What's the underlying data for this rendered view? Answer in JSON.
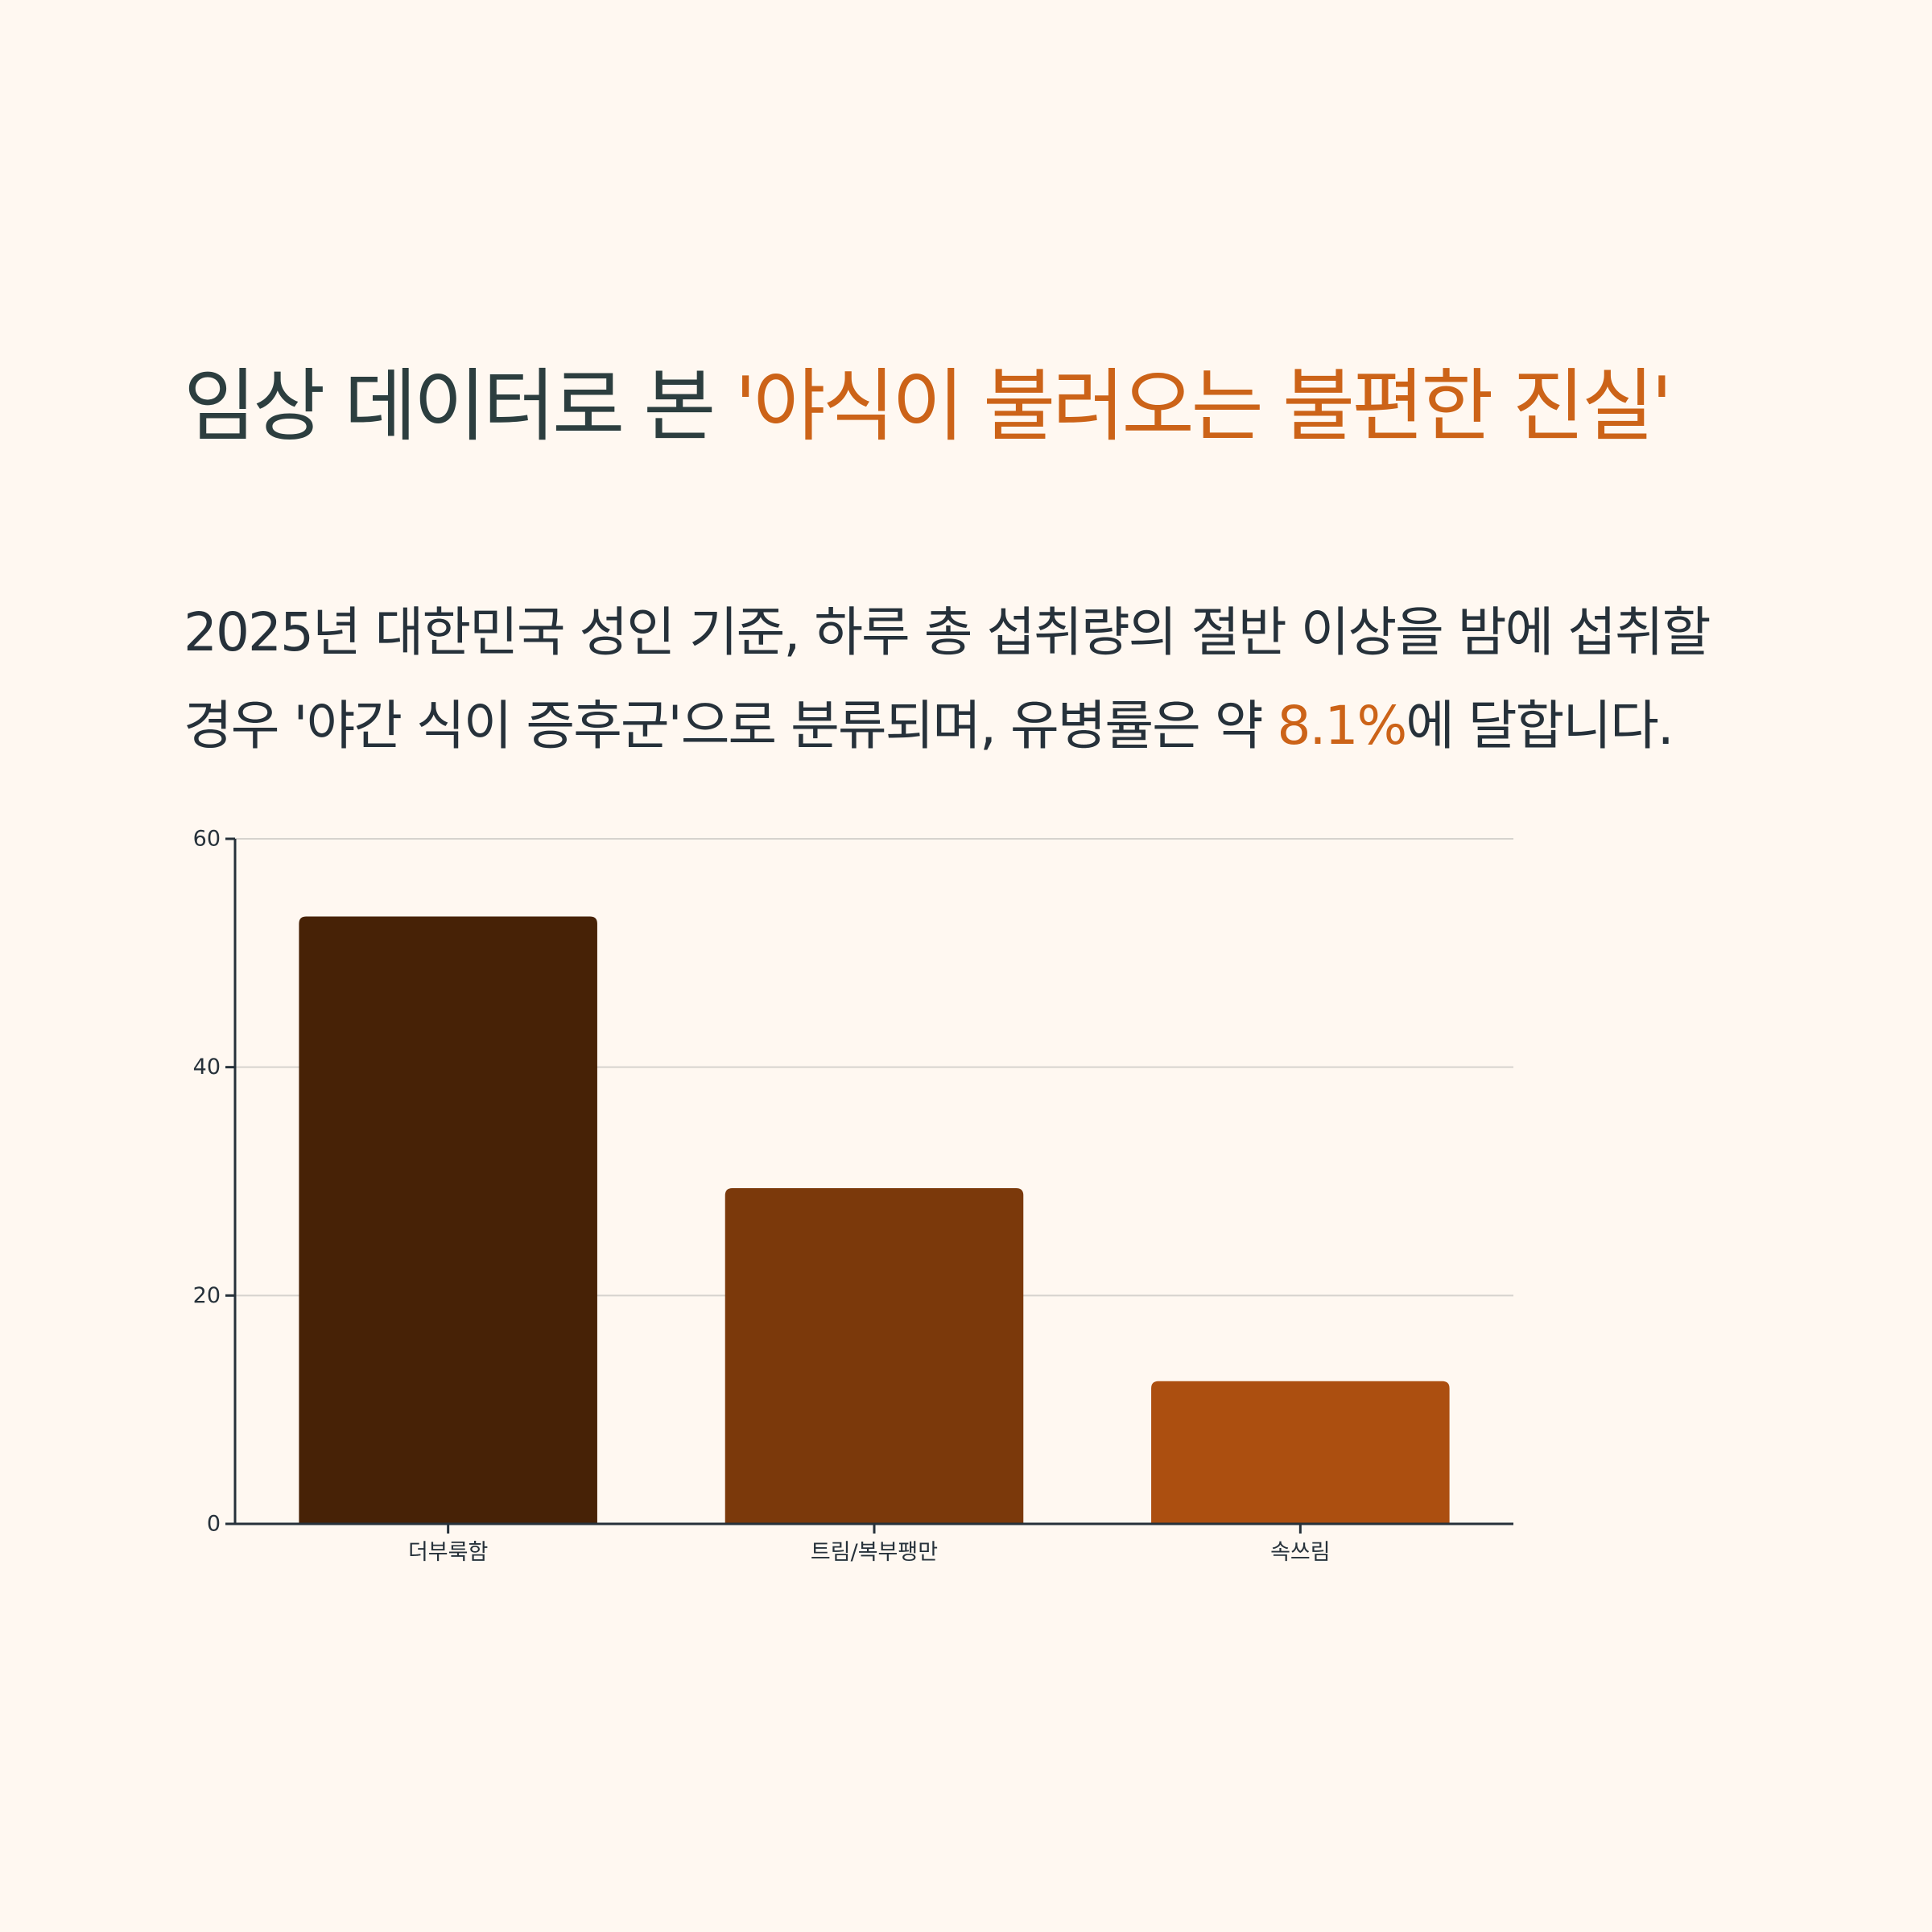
{
  "header": {
    "title_prefix": "임상 데이터로 본 ",
    "title_highlight": "'야식이 불러오는 불편한 진실'"
  },
  "description": {
    "line1": "2025년 대한민국 성인 기준, 하루 총 섭취량의 절반 이상을 밤에 섭취할",
    "line2_before": "경우 '야간 식이 증후군'으로 분류되며, 유병률은 약 ",
    "line2_highlight": "8.1%",
    "line2_after": "에 달합니다."
  },
  "colors": {
    "background": "#FFF8F1",
    "accent": "#CC6318",
    "title": "#2C3E3F",
    "text": "#26313A",
    "gridline": "#D6D3CE",
    "bars": [
      "#472206",
      "#7B390B",
      "#AC4F10"
    ]
  },
  "chart_data": {
    "type": "bar",
    "categories": [
      "더부룩함",
      "트림/복부팽만",
      "속쓰림"
    ],
    "values": [
      53.2,
      29.4,
      12.5
    ],
    "title": "",
    "xlabel": "",
    "ylabel": "",
    "ylim": [
      0,
      60
    ],
    "yticks": [
      0,
      20,
      40,
      60
    ],
    "grid": true,
    "legend": "none"
  }
}
